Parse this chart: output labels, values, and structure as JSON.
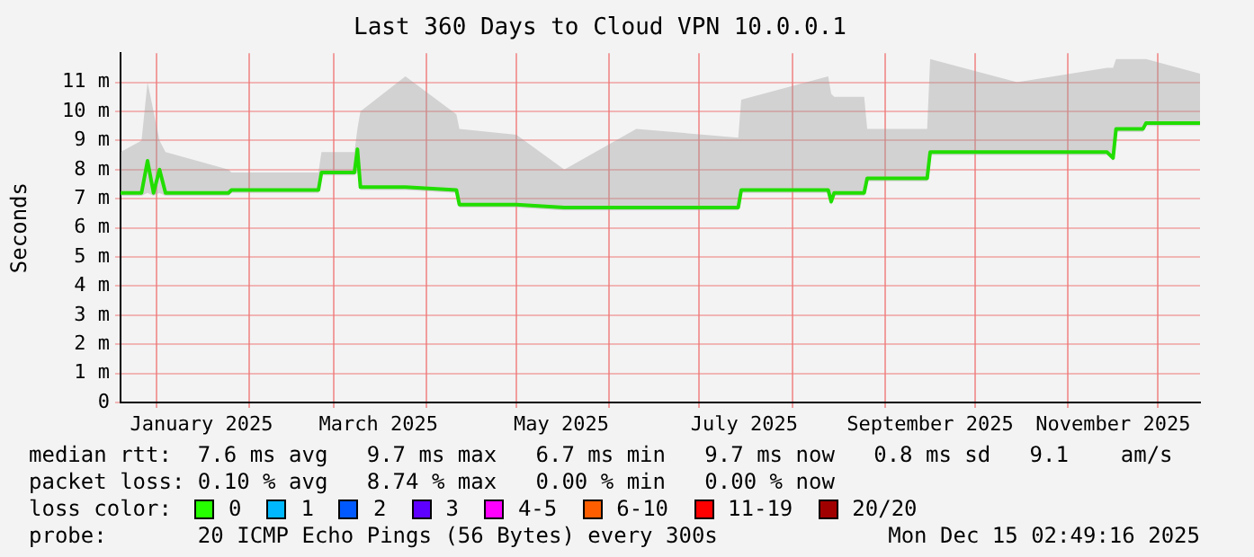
{
  "chart_data": {
    "type": "line",
    "title": "Last 360 Days to Cloud VPN 10.0.0.1",
    "ylabel": "Seconds",
    "x": [
      "2024-12-20",
      "2024-12-27",
      "2024-12-29",
      "2024-12-31",
      "2025-01-02",
      "2025-01-04",
      "2025-01-25",
      "2025-01-26",
      "2025-02-24",
      "2025-02-25",
      "2025-03-08",
      "2025-03-09",
      "2025-03-10",
      "2025-03-25",
      "2025-04-11",
      "2025-04-12",
      "2025-05-01",
      "2025-05-17",
      "2025-06-10",
      "2025-07-14",
      "2025-07-15",
      "2025-08-13",
      "2025-08-14",
      "2025-08-15",
      "2025-08-25",
      "2025-08-26",
      "2025-09-15",
      "2025-09-16",
      "2025-10-15",
      "2025-11-14",
      "2025-11-16",
      "2025-11-17",
      "2025-11-26",
      "2025-11-27",
      "2025-12-15"
    ],
    "series": [
      {
        "color": "#22dd00",
        "values": [
          7.2,
          7.2,
          8.3,
          7.2,
          8.0,
          7.2,
          7.2,
          7.3,
          7.3,
          7.9,
          7.9,
          8.7,
          7.4,
          7.4,
          7.3,
          6.8,
          6.8,
          6.7,
          6.7,
          6.7,
          7.3,
          7.3,
          6.9,
          7.2,
          7.2,
          7.7,
          7.7,
          8.6,
          8.6,
          8.6,
          8.4,
          9.4,
          9.4,
          9.6,
          9.6
        ],
        "lower": [
          7.1,
          7.1,
          7.2,
          7.1,
          7.2,
          7.1,
          7.1,
          7.2,
          7.2,
          7.8,
          7.8,
          7.9,
          7.3,
          7.3,
          7.2,
          6.7,
          6.7,
          6.6,
          6.6,
          6.6,
          7.2,
          7.2,
          6.8,
          7.1,
          7.1,
          7.6,
          7.6,
          8.5,
          8.5,
          8.5,
          8.3,
          9.3,
          9.3,
          9.5,
          9.5
        ],
        "upper": [
          8.6,
          9.0,
          11.0,
          10.0,
          9.0,
          8.6,
          8.0,
          7.9,
          7.9,
          8.6,
          8.6,
          9.4,
          10.0,
          11.2,
          9.9,
          9.4,
          9.2,
          8.0,
          9.4,
          9.1,
          10.4,
          11.2,
          10.6,
          10.5,
          10.5,
          9.4,
          9.4,
          11.8,
          11.0,
          11.5,
          11.5,
          11.8,
          11.8,
          11.8,
          11.3
        ]
      }
    ],
    "xlim": [
      "2024-12-20",
      "2025-12-15"
    ],
    "xticks": [
      {
        "value": "2025-01-01",
        "label": null
      },
      {
        "value": "2025-01-16",
        "label": "January 2025"
      },
      {
        "value": "2025-02-01",
        "label": null
      },
      {
        "value": "2025-03-01",
        "label": null
      },
      {
        "value": "2025-03-16",
        "label": "March 2025"
      },
      {
        "value": "2025-04-01",
        "label": null
      },
      {
        "value": "2025-05-01",
        "label": null
      },
      {
        "value": "2025-05-16",
        "label": "May 2025"
      },
      {
        "value": "2025-06-01",
        "label": null
      },
      {
        "value": "2025-07-01",
        "label": null
      },
      {
        "value": "2025-07-16",
        "label": "July 2025"
      },
      {
        "value": "2025-08-01",
        "label": null
      },
      {
        "value": "2025-09-01",
        "label": null
      },
      {
        "value": "2025-09-16",
        "label": "September 2025"
      },
      {
        "value": "2025-10-01",
        "label": null
      },
      {
        "value": "2025-11-01",
        "label": null
      },
      {
        "value": "2025-11-16",
        "label": "November 2025"
      },
      {
        "value": "2025-12-01",
        "label": null
      }
    ],
    "ylim": [
      0,
      12
    ],
    "yticks": [
      0,
      {
        "value": 1,
        "label": "1 m"
      },
      {
        "value": 2,
        "label": "2 m"
      },
      {
        "value": 3,
        "label": "3 m"
      },
      {
        "value": 4,
        "label": "4 m"
      },
      {
        "value": 5,
        "label": "5 m"
      },
      {
        "value": 6,
        "label": "6 m"
      },
      {
        "value": 7,
        "label": "7 m"
      },
      {
        "value": 8,
        "label": "8 m"
      },
      {
        "value": 9,
        "label": "9 m"
      },
      {
        "value": 10,
        "label": "10 m"
      },
      {
        "value": 11,
        "label": "11 m"
      }
    ],
    "grid": true,
    "legend": false,
    "marker": "none",
    "line_style": "solid",
    "annotations": [
      "median rtt:  7.6 ms avg   9.7 ms max   6.7 ms min   9.7 ms now   0.8 ms sd   9.1    am/s",
      "packet loss: 0.10 % avg   8.74 % max   0.00 % min   0.00 % now",
      "loss color:",
      "0",
      "1",
      "2",
      "3",
      "4-5",
      "6-10",
      "11-19",
      "20/20",
      "probe:       20 ICMP Echo Pings (56 Bytes) every 300s",
      "Mon Dec 15 02:49:16 2025"
    ]
  }
}
